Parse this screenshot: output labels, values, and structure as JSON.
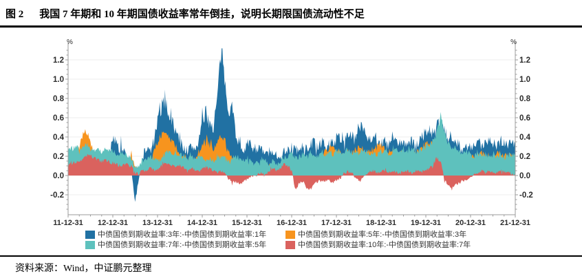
{
  "title": {
    "figure_label": "图 2",
    "text": "我国 7 年期和 10 年期国债收益率常年倒挂，说明长期限国债流动性不足"
  },
  "source": {
    "text": "资料来源：Wind，中证鹏元整理"
  },
  "chart_data": {
    "type": "area",
    "title": "",
    "y_unit": "%",
    "ylim": [
      -0.4,
      1.33
    ],
    "y_ticks": [
      -0.2,
      0.0,
      0.2,
      0.4,
      0.6,
      0.8,
      1.0,
      1.2
    ],
    "grid": "horizontal",
    "legend_position": "bottom",
    "x_start": "2011-12-31",
    "x_end": "2021-12-31",
    "sampling": "monthly",
    "x_tick_labels": [
      "11-12-31",
      "12-12-31",
      "13-12-31",
      "14-12-31",
      "15-12-31",
      "16-12-31",
      "17-12-31",
      "18-12-31",
      "19-12-31",
      "20-12-31",
      "21-12-31"
    ],
    "series": [
      {
        "name": "中债国债到期收益率:3年:-中债国债到期收益率:1年",
        "color": "#2171A3",
        "values": [
          0.15,
          0.12,
          0.1,
          0.12,
          0.1,
          0.08,
          0.12,
          0.1,
          0.12,
          0.15,
          0.18,
          0.25,
          0.35,
          0.38,
          0.3,
          0.25,
          0.15,
          0.05,
          -0.28,
          -0.05,
          0.2,
          0.28,
          0.25,
          0.35,
          0.55,
          0.7,
          0.8,
          0.65,
          0.55,
          0.45,
          0.35,
          0.3,
          0.25,
          0.3,
          0.28,
          0.35,
          0.55,
          0.65,
          0.55,
          0.5,
          0.8,
          1.25,
          1.0,
          0.7,
          0.72,
          0.45,
          0.32,
          0.28,
          0.32,
          0.32,
          0.28,
          0.3,
          0.25,
          0.22,
          0.25,
          0.2,
          0.22,
          0.2,
          0.25,
          0.28,
          0.25,
          0.28,
          0.25,
          0.3,
          0.28,
          0.32,
          0.35,
          0.3,
          0.32,
          0.3,
          0.32,
          0.35,
          0.38,
          0.4,
          0.35,
          0.45,
          0.4,
          0.38,
          0.5,
          0.55,
          0.42,
          0.38,
          0.42,
          0.38,
          0.32,
          0.35,
          0.3,
          0.4,
          0.35,
          0.32,
          0.36,
          0.32,
          0.36,
          0.3,
          0.35,
          0.4,
          0.45,
          0.48,
          0.42,
          0.5,
          0.55,
          0.45,
          0.38,
          0.42,
          0.38,
          0.32,
          0.25,
          0.3,
          0.28,
          0.3,
          0.35,
          0.3,
          0.35,
          0.4,
          0.35,
          0.3,
          0.38,
          0.35,
          0.32,
          0.36,
          0.32
        ]
      },
      {
        "name": "中债国债到期收益率:5年:-中债国债到期收益率:3年",
        "color": "#F7941E",
        "values": [
          0.12,
          0.15,
          0.18,
          0.3,
          0.45,
          0.45,
          0.35,
          0.2,
          0.15,
          0.12,
          0.12,
          0.12,
          0.12,
          0.1,
          0.08,
          0.08,
          0.1,
          0.2,
          0.1,
          0.05,
          0.08,
          0.1,
          0.15,
          0.25,
          0.35,
          0.42,
          0.45,
          0.4,
          0.35,
          0.3,
          0.22,
          0.18,
          0.15,
          0.18,
          0.15,
          0.22,
          0.32,
          0.38,
          0.32,
          0.28,
          0.35,
          0.42,
          0.38,
          0.25,
          0.2,
          0.15,
          0.1,
          0.08,
          0.1,
          0.08,
          0.06,
          0.08,
          0.1,
          0.08,
          0.1,
          0.08,
          0.06,
          0.08,
          0.1,
          0.12,
          0.15,
          0.12,
          0.1,
          0.12,
          0.15,
          0.18,
          0.15,
          0.18,
          0.2,
          0.25,
          0.28,
          0.3,
          0.28,
          0.25,
          0.2,
          0.25,
          0.22,
          0.25,
          0.3,
          0.28,
          0.22,
          0.25,
          0.28,
          0.3,
          0.32,
          0.28,
          0.25,
          0.28,
          0.25,
          0.22,
          0.25,
          0.22,
          0.25,
          0.22,
          0.25,
          0.28,
          0.32,
          0.35,
          0.3,
          0.38,
          0.42,
          0.35,
          0.25,
          0.22,
          0.25,
          0.2,
          0.18,
          0.2,
          0.18,
          0.2,
          0.22,
          0.25,
          0.2,
          0.18,
          0.2,
          0.22,
          0.25,
          0.2,
          0.22,
          0.2,
          0.18
        ]
      },
      {
        "name": "中债国债到期收益率:7年:-中债国债到期收益率:5年",
        "color": "#5EC1BD",
        "values": [
          0.28,
          0.28,
          0.3,
          0.28,
          0.3,
          0.32,
          0.28,
          0.26,
          0.28,
          0.25,
          0.27,
          0.26,
          0.25,
          0.22,
          0.25,
          0.22,
          0.2,
          0.18,
          0.08,
          0.1,
          0.15,
          0.18,
          0.2,
          0.18,
          0.15,
          0.18,
          0.22,
          0.25,
          0.22,
          0.2,
          0.22,
          0.2,
          0.18,
          0.2,
          0.18,
          0.2,
          0.18,
          0.15,
          0.18,
          0.15,
          0.18,
          0.2,
          0.18,
          0.15,
          0.18,
          0.2,
          0.18,
          0.15,
          0.18,
          0.15,
          0.12,
          0.15,
          0.18,
          0.15,
          0.12,
          0.15,
          0.12,
          0.15,
          0.18,
          0.2,
          0.22,
          0.18,
          0.2,
          0.22,
          0.2,
          0.25,
          0.22,
          0.2,
          0.25,
          0.22,
          0.25,
          0.22,
          0.25,
          0.25,
          0.22,
          0.28,
          0.25,
          0.22,
          0.25,
          0.28,
          0.25,
          0.22,
          0.25,
          0.22,
          0.25,
          0.25,
          0.22,
          0.25,
          0.28,
          0.25,
          0.28,
          0.25,
          0.28,
          0.25,
          0.25,
          0.28,
          0.3,
          0.32,
          0.35,
          0.45,
          0.62,
          0.45,
          0.32,
          0.28,
          0.3,
          0.25,
          0.22,
          0.25,
          0.22,
          0.2,
          0.22,
          0.2,
          0.22,
          0.2,
          0.22,
          0.2,
          0.22,
          0.2,
          0.22,
          0.2,
          0.22
        ]
      },
      {
        "name": "中债国债到期收益率:10年:-中债国债到期收益率:7年",
        "color": "#DA625E",
        "values": [
          0.1,
          0.12,
          0.14,
          0.16,
          0.17,
          0.2,
          0.22,
          0.18,
          0.16,
          0.15,
          0.16,
          0.14,
          0.13,
          0.12,
          0.1,
          0.12,
          0.12,
          0.1,
          0.02,
          0.02,
          0.05,
          0.06,
          0.08,
          0.06,
          0.06,
          0.1,
          0.12,
          0.12,
          0.1,
          0.08,
          0.1,
          0.08,
          0.06,
          0.08,
          0.06,
          0.05,
          0.08,
          0.1,
          0.08,
          0.05,
          0.03,
          0.05,
          0.02,
          -0.03,
          -0.08,
          -0.05,
          -0.1,
          -0.06,
          -0.04,
          -0.02,
          0.0,
          0.03,
          0.02,
          0.0,
          0.05,
          0.08,
          0.05,
          0.08,
          0.12,
          0.1,
          0.05,
          -0.15,
          -0.08,
          -0.06,
          -0.13,
          -0.14,
          -0.08,
          -0.06,
          -0.05,
          -0.06,
          -0.05,
          -0.07,
          -0.05,
          -0.03,
          0.02,
          0.04,
          0.02,
          -0.03,
          -0.05,
          -0.03,
          0.02,
          0.04,
          0.05,
          0.03,
          0.04,
          0.05,
          0.03,
          0.05,
          0.04,
          0.02,
          0.04,
          0.05,
          0.03,
          0.04,
          0.05,
          0.04,
          0.06,
          0.08,
          0.12,
          0.18,
          0.15,
          -0.05,
          -0.1,
          -0.13,
          -0.1,
          -0.08,
          -0.05,
          -0.04,
          -0.03,
          0.02,
          0.03,
          0.04,
          0.03,
          0.05,
          0.04,
          0.03,
          0.05,
          0.04,
          0.03,
          0.02,
          -0.02
        ]
      }
    ],
    "render_hints": {
      "noise_amp": [
        0.05,
        0.03,
        0.028,
        0.02
      ],
      "seed": 7,
      "upsample": 5,
      "y_minor_step": 0.05,
      "x_minor_per_major": 4,
      "grid_color": "#ECECEC",
      "axis_color": "#9B9B9B",
      "label_color": "#2B2B2B"
    }
  }
}
